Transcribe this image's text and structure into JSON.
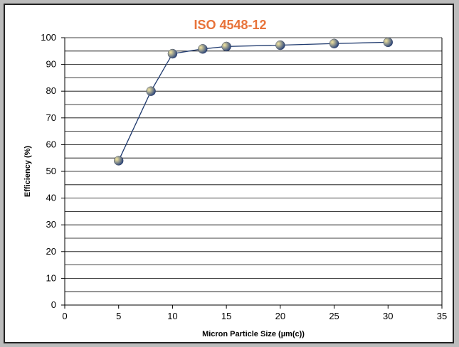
{
  "chart_data": {
    "type": "line",
    "title": "ISO 4548-12",
    "xlabel": "Micron Particle Size (µm(c))",
    "ylabel": "Efficiency (%)",
    "xlim": [
      0,
      35
    ],
    "ylim": [
      0,
      100
    ],
    "x_ticks": [
      0,
      5,
      10,
      15,
      20,
      25,
      30,
      35
    ],
    "y_ticks": [
      0,
      10,
      20,
      30,
      40,
      50,
      60,
      70,
      80,
      90,
      100
    ],
    "grid": true,
    "series": [
      {
        "x": [
          5,
          8,
          10,
          12.8,
          15,
          20,
          25,
          30
        ],
        "values": [
          54,
          80,
          94,
          95.8,
          96.7,
          97.2,
          97.8,
          98.3
        ]
      }
    ]
  },
  "colors": {
    "title": "#e8733a",
    "line": "#1f3a6e",
    "marker_light": "#f4e6a0",
    "marker_dark": "#1e3a78",
    "grid": "#000000",
    "background": "#bcbcbc"
  }
}
